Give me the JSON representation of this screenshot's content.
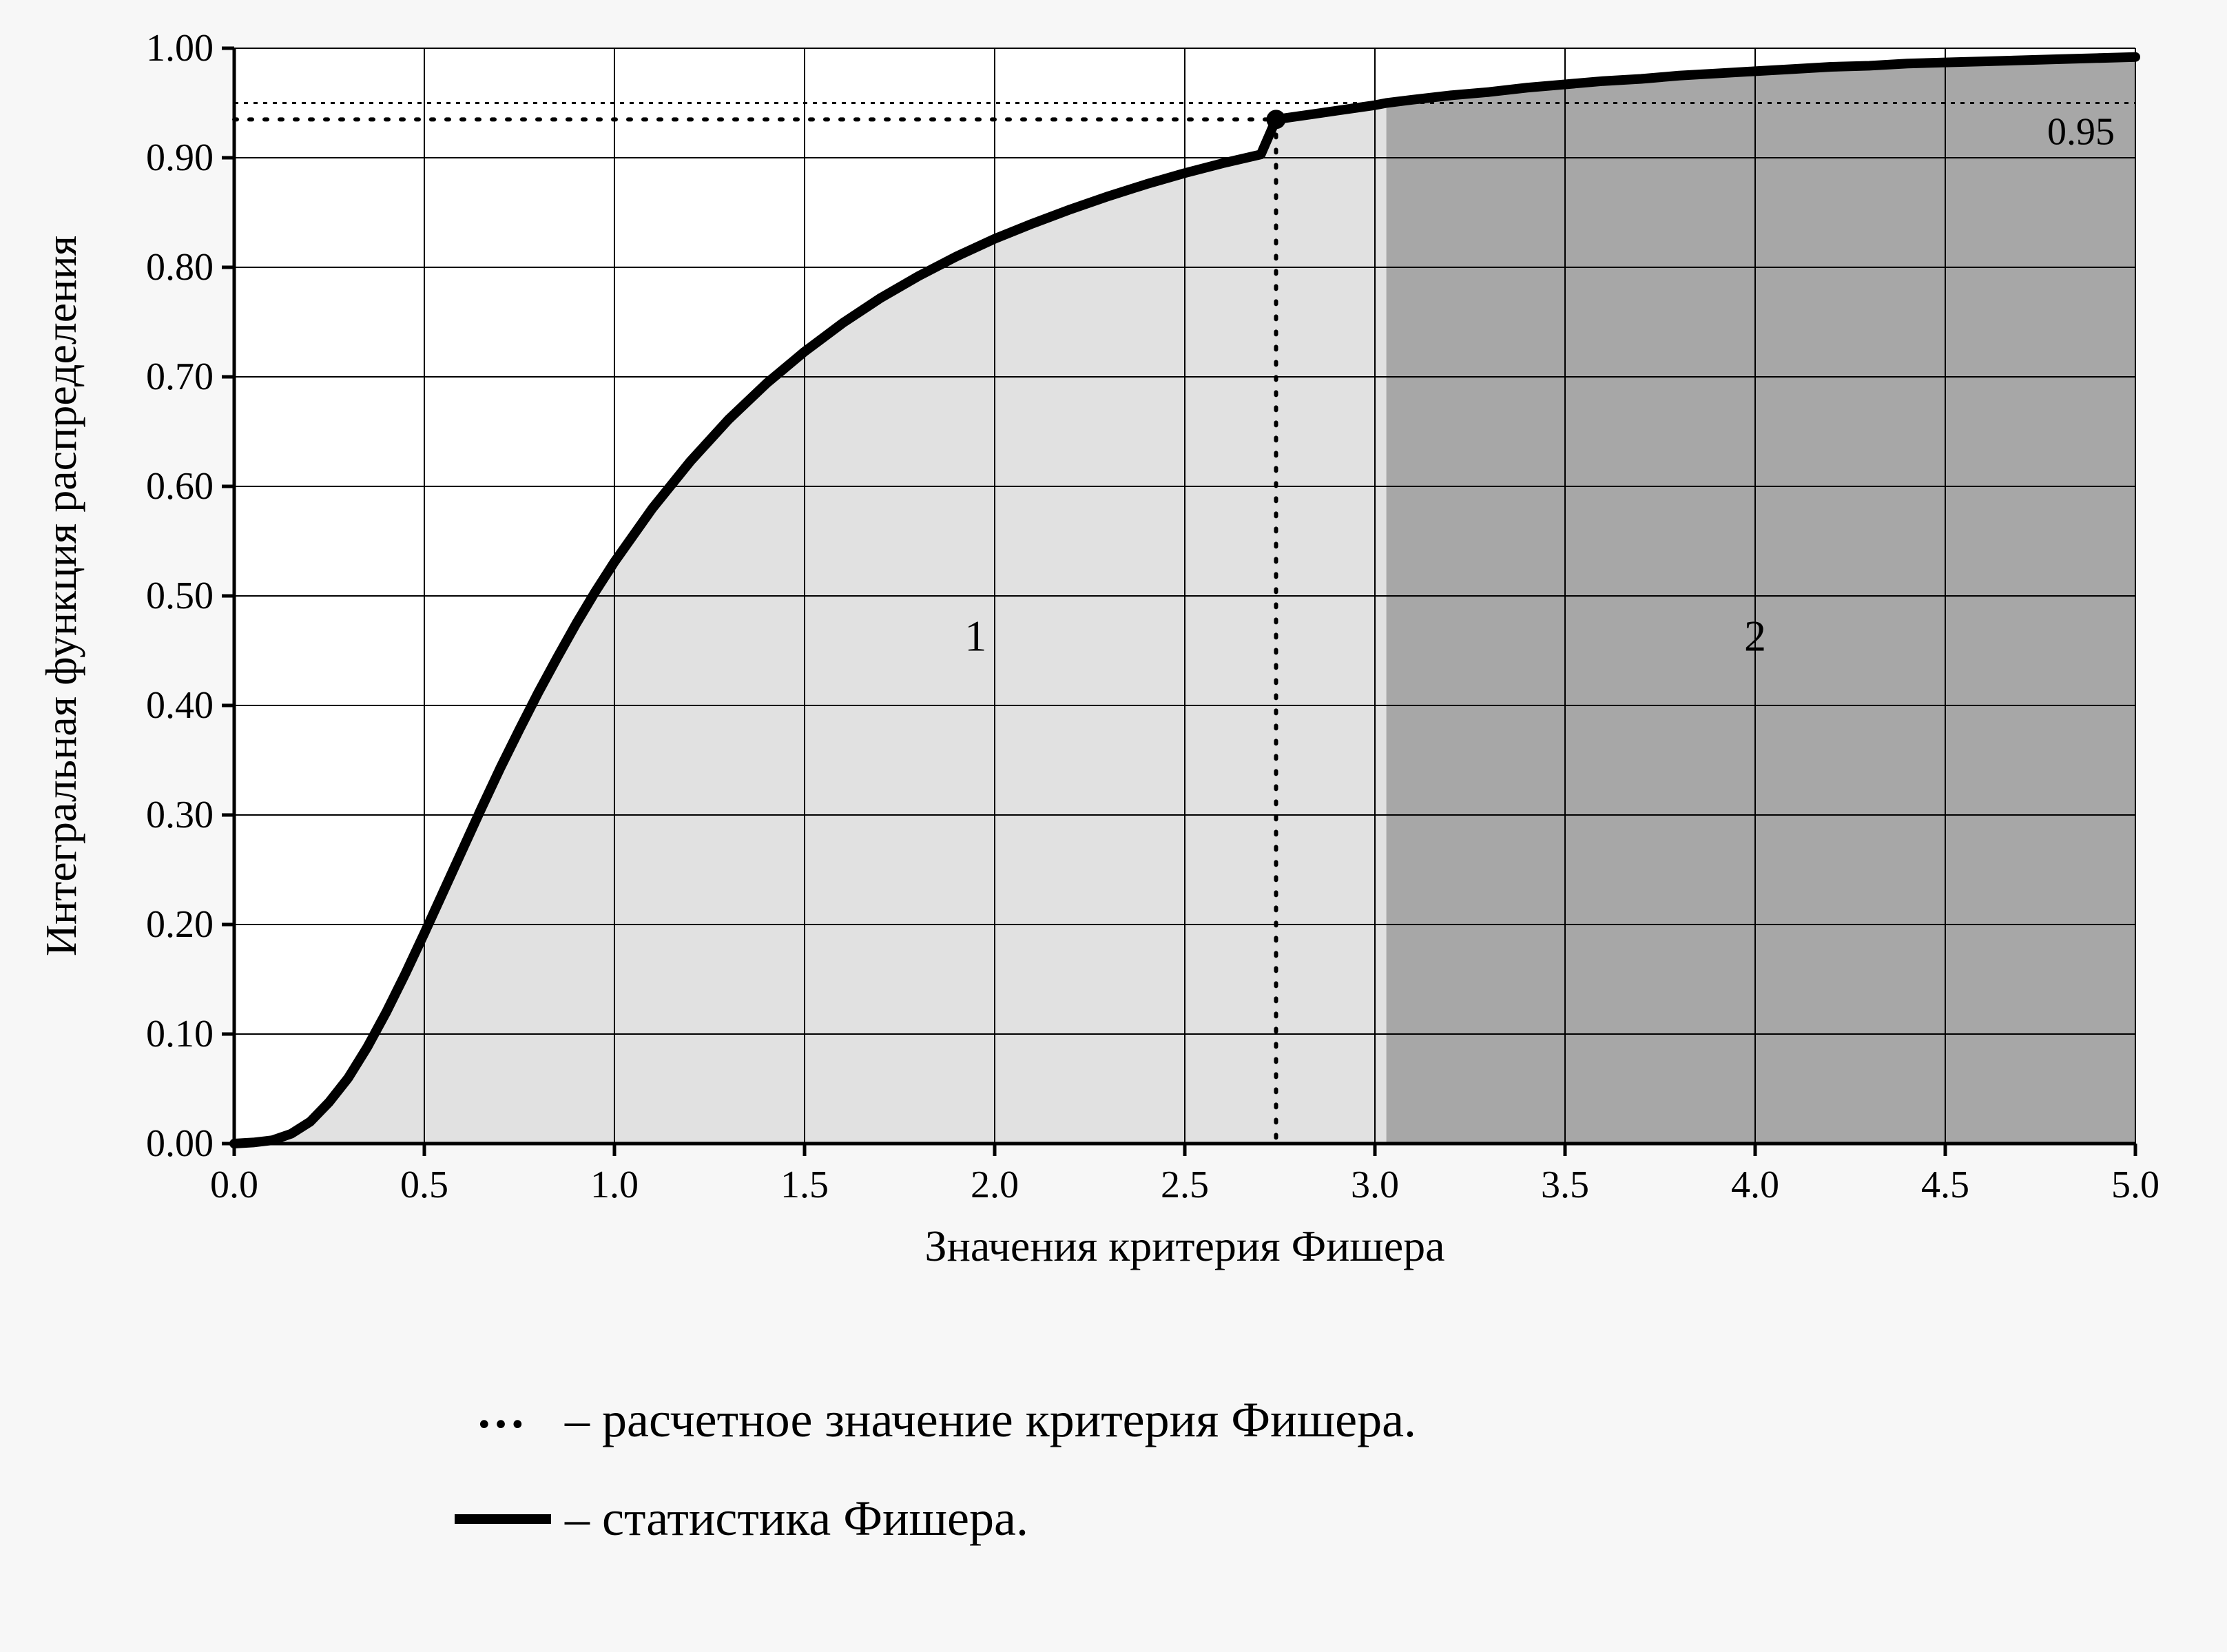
{
  "chart": {
    "type": "line-cdf",
    "background_color": "#f7f7f7",
    "plot_background_color": "#ffffff",
    "axis_color": "#000000",
    "grid_color": "#000000",
    "grid_stroke_width": 2,
    "axis_stroke_width": 5,
    "curve_color": "#000000",
    "curve_stroke_width": 14,
    "region1_fill": "#e1e1e1",
    "region2_fill": "#a7a7a7",
    "dotted_line_color": "#000000",
    "dotted_stroke_width": 6,
    "marker_radius": 14,
    "marker_color": "#000000",
    "tick_font_size": 56,
    "axis_label_font_size": 64,
    "region_label_font_size": 64,
    "threshold_label_font_size": 56,
    "xlabel": "Значения критерия Фишера",
    "ylabel": "Интегральная функция распределения",
    "xlim": [
      0.0,
      5.0
    ],
    "ylim": [
      0.0,
      1.0
    ],
    "xticks": [
      0.0,
      0.5,
      1.0,
      1.5,
      2.0,
      2.5,
      3.0,
      3.5,
      4.0,
      4.5,
      5.0
    ],
    "xtick_labels": [
      "0.0",
      "0.5",
      "1.0",
      "1.5",
      "2.0",
      "2.5",
      "3.0",
      "3.5",
      "4.0",
      "4.5",
      "5.0"
    ],
    "yticks": [
      0.0,
      0.1,
      0.2,
      0.3,
      0.4,
      0.5,
      0.6,
      0.7,
      0.8,
      0.9,
      1.0
    ],
    "ytick_labels": [
      "0.00",
      "0.10",
      "0.20",
      "0.30",
      "0.40",
      "0.50",
      "0.60",
      "0.70",
      "0.80",
      "0.90",
      "1.00"
    ],
    "threshold_y": 0.95,
    "threshold_label": "0.95",
    "marker_x": 2.74,
    "marker_y": 0.935,
    "region_split_x": 3.03,
    "region_labels": {
      "r1": "1",
      "r2": "2"
    },
    "region_label_positions": {
      "r1": [
        1.95,
        0.45
      ],
      "r2": [
        4.0,
        0.45
      ]
    },
    "curve_points": [
      [
        0.0,
        0.0
      ],
      [
        0.05,
        0.001
      ],
      [
        0.1,
        0.003
      ],
      [
        0.15,
        0.009
      ],
      [
        0.2,
        0.02
      ],
      [
        0.25,
        0.038
      ],
      [
        0.3,
        0.06
      ],
      [
        0.35,
        0.088
      ],
      [
        0.4,
        0.12
      ],
      [
        0.45,
        0.155
      ],
      [
        0.5,
        0.192
      ],
      [
        0.55,
        0.23
      ],
      [
        0.6,
        0.268
      ],
      [
        0.65,
        0.306
      ],
      [
        0.7,
        0.343
      ],
      [
        0.75,
        0.378
      ],
      [
        0.8,
        0.412
      ],
      [
        0.85,
        0.444
      ],
      [
        0.9,
        0.475
      ],
      [
        0.95,
        0.504
      ],
      [
        1.0,
        0.531
      ],
      [
        1.1,
        0.58
      ],
      [
        1.2,
        0.623
      ],
      [
        1.3,
        0.661
      ],
      [
        1.4,
        0.694
      ],
      [
        1.5,
        0.723
      ],
      [
        1.6,
        0.749
      ],
      [
        1.7,
        0.772
      ],
      [
        1.8,
        0.792
      ],
      [
        1.9,
        0.81
      ],
      [
        2.0,
        0.826
      ],
      [
        2.1,
        0.84
      ],
      [
        2.2,
        0.853
      ],
      [
        2.3,
        0.865
      ],
      [
        2.4,
        0.876
      ],
      [
        2.5,
        0.886
      ],
      [
        2.6,
        0.895
      ],
      [
        2.7,
        0.903
      ],
      [
        2.74,
        0.935
      ],
      [
        2.8,
        0.938
      ],
      [
        2.9,
        0.943
      ],
      [
        3.0,
        0.948
      ],
      [
        3.03,
        0.95
      ],
      [
        3.1,
        0.953
      ],
      [
        3.2,
        0.957
      ],
      [
        3.3,
        0.96
      ],
      [
        3.4,
        0.964
      ],
      [
        3.5,
        0.967
      ],
      [
        3.6,
        0.97
      ],
      [
        3.7,
        0.972
      ],
      [
        3.8,
        0.975
      ],
      [
        3.9,
        0.977
      ],
      [
        4.0,
        0.979
      ],
      [
        4.1,
        0.981
      ],
      [
        4.2,
        0.983
      ],
      [
        4.3,
        0.984
      ],
      [
        4.4,
        0.986
      ],
      [
        4.5,
        0.987
      ],
      [
        4.6,
        0.988
      ],
      [
        4.7,
        0.989
      ],
      [
        4.8,
        0.99
      ],
      [
        4.9,
        0.991
      ],
      [
        5.0,
        0.992
      ]
    ]
  },
  "legend": {
    "dotted_symbol": "…",
    "dotted_text": " – расчетное значение критерия Фишера.",
    "solid_text": " – статистика Фишера."
  }
}
